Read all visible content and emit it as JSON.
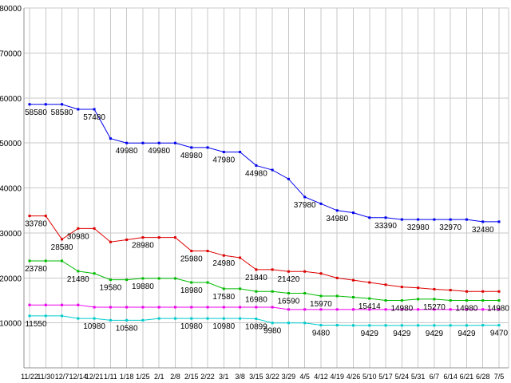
{
  "chart_data": {
    "type": "line",
    "title": "",
    "xlabel": "",
    "ylabel": "",
    "ylim": [
      0,
      80000
    ],
    "y_ticks": [
      10000,
      20000,
      30000,
      40000,
      50000,
      60000,
      70000,
      80000
    ],
    "grid": true,
    "legend": "none",
    "x_labels": [
      "11/22",
      "11/30",
      "12/7",
      "12/14",
      "12/21",
      "1/11",
      "1/18",
      "1/25",
      "2/1",
      "2/8",
      "2/15",
      "2/22",
      "3/1",
      "3/8",
      "3/15",
      "3/22",
      "3/29",
      "4/5",
      "4/12",
      "4/19",
      "4/26",
      "5/10",
      "5/17",
      "5/24",
      "5/31",
      "6/7",
      "6/14",
      "6/21",
      "6/28",
      "7/5"
    ],
    "colors": {
      "grid": "#c8c8c8",
      "axis": "#909090",
      "text": "#000000",
      "label_text": "#000000"
    },
    "series": [
      {
        "name": "series-blue",
        "color": "#0000ee",
        "values": [
          58580,
          58580,
          58580,
          57480,
          57480,
          50980,
          49980,
          49980,
          49980,
          49980,
          48980,
          48980,
          47980,
          47980,
          44980,
          43980,
          41980,
          37980,
          36480,
          34980,
          34480,
          33390,
          33390,
          32980,
          32980,
          32970,
          32970,
          32970,
          32480,
          32480
        ],
        "point_labels": [
          {
            "i": 0,
            "text": "58580"
          },
          {
            "i": 2,
            "text": "58580"
          },
          {
            "i": 4,
            "text": "57480"
          },
          {
            "i": 6,
            "text": "49980"
          },
          {
            "i": 8,
            "text": "49980"
          },
          {
            "i": 10,
            "text": "48980"
          },
          {
            "i": 12,
            "text": "47980"
          },
          {
            "i": 14,
            "text": "44980"
          },
          {
            "i": 17,
            "text": "37980"
          },
          {
            "i": 19,
            "text": "34980"
          },
          {
            "i": 22,
            "text": "33390"
          },
          {
            "i": 24,
            "text": "32980"
          },
          {
            "i": 26,
            "text": "32970"
          },
          {
            "i": 28,
            "text": "32480"
          }
        ]
      },
      {
        "name": "series-red",
        "color": "#dd0000",
        "values": [
          33780,
          33780,
          28580,
          30980,
          30980,
          27980,
          28480,
          28980,
          28980,
          28980,
          25980,
          25980,
          24980,
          24480,
          21840,
          21840,
          21420,
          21420,
          20980,
          19980,
          19480,
          18980,
          18480,
          17980,
          17780,
          17480,
          17280,
          16980,
          16980,
          16980
        ],
        "point_labels": [
          {
            "i": 0,
            "text": "33780"
          },
          {
            "i": 2,
            "text": "28580"
          },
          {
            "i": 3,
            "text": "30980"
          },
          {
            "i": 7,
            "text": "28980"
          },
          {
            "i": 10,
            "text": "25980"
          },
          {
            "i": 12,
            "text": "24980"
          },
          {
            "i": 14,
            "text": "21840"
          },
          {
            "i": 16,
            "text": "21420"
          }
        ]
      },
      {
        "name": "series-green",
        "color": "#00bb00",
        "values": [
          23780,
          23780,
          23780,
          21480,
          20980,
          19580,
          19580,
          19880,
          19880,
          19880,
          18980,
          18980,
          17580,
          17580,
          16980,
          16980,
          16590,
          16590,
          15970,
          15970,
          15700,
          15414,
          14980,
          14980,
          15270,
          15270,
          14980,
          14980,
          14980,
          14980
        ],
        "point_labels": [
          {
            "i": 0,
            "text": "23780"
          },
          {
            "i": 3,
            "text": "21480"
          },
          {
            "i": 5,
            "text": "19580"
          },
          {
            "i": 7,
            "text": "19880"
          },
          {
            "i": 10,
            "text": "18980"
          },
          {
            "i": 12,
            "text": "17580"
          },
          {
            "i": 14,
            "text": "16980"
          },
          {
            "i": 16,
            "text": "16590"
          },
          {
            "i": 18,
            "text": "15970"
          },
          {
            "i": 21,
            "text": "15414"
          },
          {
            "i": 23,
            "text": "14980"
          },
          {
            "i": 25,
            "text": "15270"
          },
          {
            "i": 27,
            "text": "14980"
          },
          {
            "i": 29,
            "text": "14980"
          }
        ]
      },
      {
        "name": "series-magenta",
        "color": "#ee00ee",
        "values": [
          13980,
          13980,
          13980,
          13980,
          13480,
          13480,
          13480,
          13480,
          13480,
          13480,
          13480,
          13480,
          13480,
          13480,
          13480,
          13480,
          12980,
          12980,
          12980,
          12980,
          12980,
          12980,
          12980,
          12980,
          12980,
          12980,
          12980,
          12980,
          12980,
          12980
        ],
        "point_labels": []
      },
      {
        "name": "series-cyan",
        "color": "#00cccc",
        "values": [
          11550,
          11550,
          11550,
          10980,
          10980,
          10580,
          10580,
          10580,
          10980,
          10980,
          10980,
          10980,
          10980,
          10980,
          10899,
          9980,
          9980,
          9980,
          9480,
          9480,
          9429,
          9429,
          9429,
          9429,
          9429,
          9429,
          9429,
          9429,
          9470,
          9470
        ],
        "point_labels": [
          {
            "i": 0,
            "text": "11550"
          },
          {
            "i": 4,
            "text": "10980"
          },
          {
            "i": 6,
            "text": "10580"
          },
          {
            "i": 10,
            "text": "10980"
          },
          {
            "i": 12,
            "text": "10980"
          },
          {
            "i": 14,
            "text": "10899"
          },
          {
            "i": 15,
            "text": "9980"
          },
          {
            "i": 18,
            "text": "9480"
          },
          {
            "i": 21,
            "text": "9429"
          },
          {
            "i": 23,
            "text": "9429"
          },
          {
            "i": 25,
            "text": "9429"
          },
          {
            "i": 27,
            "text": "9429"
          },
          {
            "i": 29,
            "text": "9470"
          }
        ]
      }
    ]
  }
}
